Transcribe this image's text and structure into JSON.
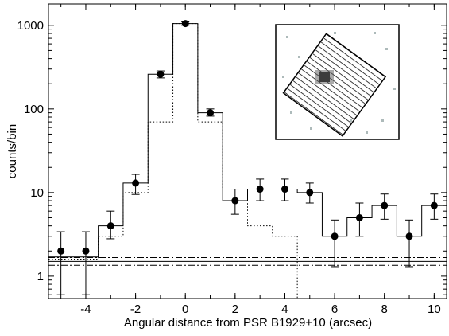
{
  "chart_data": {
    "type": "errorbar",
    "x_label": "Angular distance from PSR B1929+10 (arcsec)",
    "y_label": "counts/bin",
    "log_y": true,
    "xlim": [
      -5.5,
      10.5
    ],
    "xticks": [
      -4,
      -2,
      0,
      2,
      4,
      6,
      8,
      10
    ],
    "ylim": [
      0.54,
      1800
    ],
    "yticks": [
      1,
      10,
      100,
      1000
    ],
    "color": "#000000",
    "x": [
      -5,
      -4,
      -3,
      -2,
      -1,
      0,
      1,
      2,
      3,
      4,
      5,
      6,
      7,
      8,
      9,
      10
    ],
    "values": [
      2,
      2,
      4,
      13,
      260,
      1050,
      90,
      8,
      11,
      11,
      10,
      3,
      5,
      7,
      3,
      7
    ],
    "lower": [
      0.6,
      0.6,
      2.8,
      9.5,
      235,
      1000,
      82,
      5.5,
      8,
      8,
      7.5,
      1.3,
      3,
      4.8,
      1.3,
      4.8
    ],
    "upper": [
      3.4,
      3.4,
      6,
      16.5,
      285,
      1100,
      100,
      11,
      14.5,
      14.5,
      13,
      4.7,
      7.5,
      9.6,
      4.7,
      9.6
    ],
    "histogram": {
      "bins": [
        -5.5,
        -4.5,
        -3.5,
        -2.5,
        -1.5,
        -0.5,
        0.5,
        1.5,
        2.5,
        3.5,
        4.5,
        5.5,
        6.5,
        7.5,
        8.5,
        9.5,
        10.5
      ],
      "values": [
        1.7,
        1.7,
        4,
        13,
        260,
        1050,
        90,
        8,
        11,
        11,
        10,
        3,
        5,
        7,
        3,
        7
      ]
    },
    "model": {
      "bins": [
        -5.5,
        -4.5,
        -3.5,
        -2.5,
        -1.5,
        -0.5,
        0.5,
        1.5,
        2.5,
        3.5,
        4.5
      ],
      "values": [
        1.6,
        1.6,
        3,
        10,
        70,
        1050,
        70,
        11,
        4,
        3
      ]
    },
    "hlines": [
      {
        "value": 1.5,
        "style": "solid"
      },
      {
        "value": 1.67,
        "style": "dashdot"
      },
      {
        "value": 1.35,
        "style": "dashdot"
      }
    ]
  }
}
